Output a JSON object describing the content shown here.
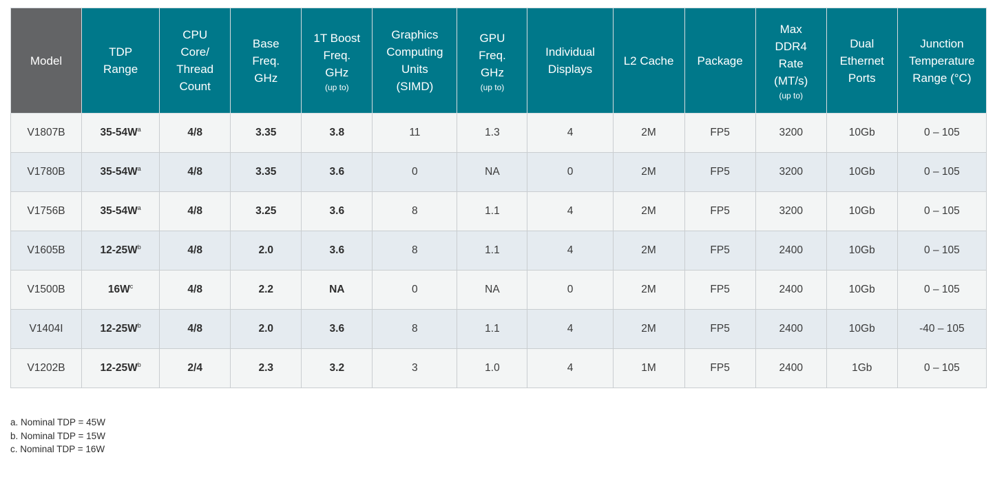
{
  "headers": [
    {
      "lines": [
        "Model"
      ],
      "small": ""
    },
    {
      "lines": [
        "TDP",
        "Range"
      ],
      "small": ""
    },
    {
      "lines": [
        "CPU",
        "Core/",
        "Thread",
        "Count"
      ],
      "small": ""
    },
    {
      "lines": [
        "Base",
        "Freq.",
        "GHz"
      ],
      "small": ""
    },
    {
      "lines": [
        "1T Boost",
        "Freq.",
        "GHz"
      ],
      "small": "(up to)"
    },
    {
      "lines": [
        "Graphics",
        "Computing",
        "Units",
        "(SIMD)"
      ],
      "small": ""
    },
    {
      "lines": [
        "GPU",
        "Freq.",
        "GHz"
      ],
      "small": "(up to)"
    },
    {
      "lines": [
        "Individual",
        "Displays"
      ],
      "small": ""
    },
    {
      "lines": [
        "L2 Cache"
      ],
      "small": ""
    },
    {
      "lines": [
        "Package"
      ],
      "small": ""
    },
    {
      "lines": [
        "Max",
        "DDR4",
        "Rate",
        "(MT/s)"
      ],
      "small": "(up to)"
    },
    {
      "lines": [
        "Dual",
        "Ethernet",
        "Ports"
      ],
      "small": ""
    },
    {
      "lines": [
        "Junction",
        "Temperature",
        "Range (°C)"
      ],
      "small": ""
    }
  ],
  "rows": [
    {
      "model": "V1807B",
      "tdp": "35-54W",
      "tdp_note": "a",
      "cores": "4/8",
      "base": "3.35",
      "boost": "3.8",
      "cu": "11",
      "gpu": "1.3",
      "displays": "4",
      "l2": "2M",
      "package": "FP5",
      "ddr4": "3200",
      "ethernet": "10Gb",
      "temp": "0 – 105"
    },
    {
      "model": "V1780B",
      "tdp": "35-54W",
      "tdp_note": "a",
      "cores": "4/8",
      "base": "3.35",
      "boost": "3.6",
      "cu": "0",
      "gpu": "NA",
      "displays": "0",
      "l2": "2M",
      "package": "FP5",
      "ddr4": "3200",
      "ethernet": "10Gb",
      "temp": "0 – 105"
    },
    {
      "model": "V1756B",
      "tdp": "35-54W",
      "tdp_note": "a",
      "cores": "4/8",
      "base": "3.25",
      "boost": "3.6",
      "cu": "8",
      "gpu": "1.1",
      "displays": "4",
      "l2": "2M",
      "package": "FP5",
      "ddr4": "3200",
      "ethernet": "10Gb",
      "temp": "0 – 105"
    },
    {
      "model": "V1605B",
      "tdp": "12-25W",
      "tdp_note": "b",
      "cores": "4/8",
      "base": "2.0",
      "boost": "3.6",
      "cu": "8",
      "gpu": "1.1",
      "displays": "4",
      "l2": "2M",
      "package": "FP5",
      "ddr4": "2400",
      "ethernet": "10Gb",
      "temp": "0 – 105"
    },
    {
      "model": "V1500B",
      "tdp": "16W",
      "tdp_note": "c",
      "cores": "4/8",
      "base": "2.2",
      "boost": "NA",
      "cu": "0",
      "gpu": "NA",
      "displays": "0",
      "l2": "2M",
      "package": "FP5",
      "ddr4": "2400",
      "ethernet": "10Gb",
      "temp": "0 – 105"
    },
    {
      "model": "V1404I",
      "tdp": "12-25W",
      "tdp_note": "b",
      "cores": "4/8",
      "base": "2.0",
      "boost": "3.6",
      "cu": "8",
      "gpu": "1.1",
      "displays": "4",
      "l2": "2M",
      "package": "FP5",
      "ddr4": "2400",
      "ethernet": "10Gb",
      "temp": "-40 – 105"
    },
    {
      "model": "V1202B",
      "tdp": "12-25W",
      "tdp_note": "b",
      "cores": "2/4",
      "base": "2.3",
      "boost": "3.2",
      "cu": "3",
      "gpu": "1.0",
      "displays": "4",
      "l2": "1M",
      "package": "FP5",
      "ddr4": "2400",
      "ethernet": "1Gb",
      "temp": "0 – 105"
    }
  ],
  "footnotes": [
    "a. Nominal TDP = 45W",
    "b. Nominal TDP = 15W",
    "c. Nominal TDP = 16W"
  ],
  "colors": {
    "header_teal": "#00788a",
    "header_model_gray": "#636466",
    "row_light": "#f3f5f5",
    "row_blue": "#e5ebf0"
  }
}
